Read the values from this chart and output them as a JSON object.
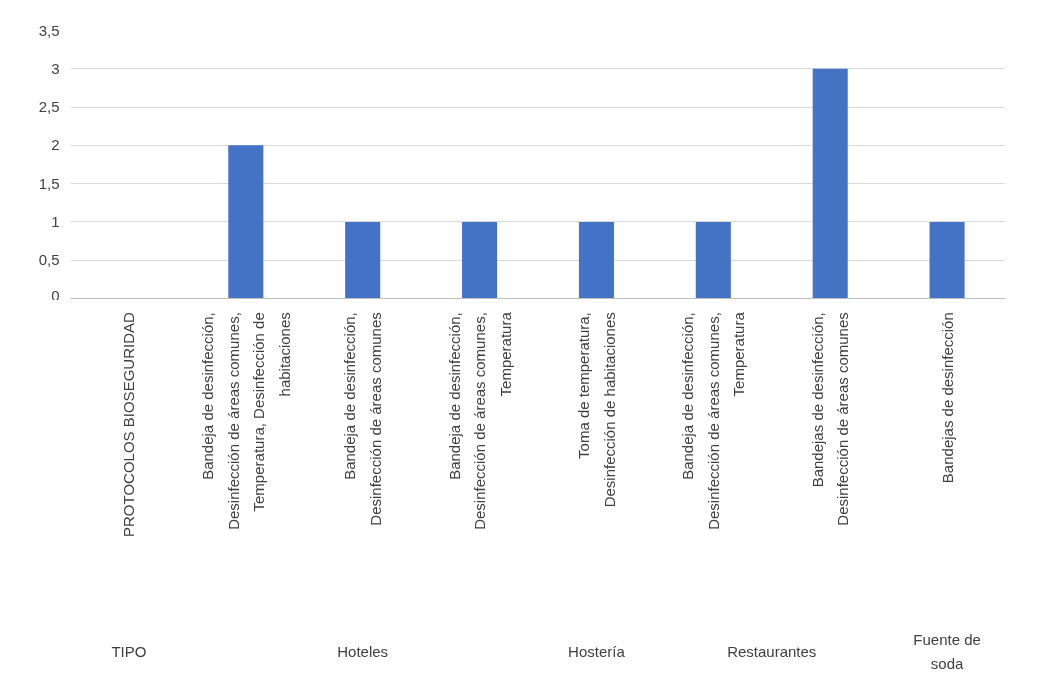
{
  "chart_data": {
    "type": "bar",
    "categories": [
      "PROTOCOLOS BIOSEGURIDAD",
      "Bandeja de desinfección, Desinfección de áreas comunes, Temperatura, Desinfección de habitaciones",
      "Bandeja de desinfección, Desinfección de áreas comunes",
      "Bandeja de desinfección, Desinfección de áreas comunes, Temperatura",
      "Toma de temperatura, Desinfección de habitaciones",
      "Bandeja de desinfección, Desinfección de áreas comunes, Temperatura",
      "Bandejas de desinfección, Desinfección de áreas comunes",
      "Bandejas de desinfección"
    ],
    "values": [
      null,
      2,
      1,
      1,
      1,
      1,
      3,
      1
    ],
    "color": "#4472c4",
    "ylim": [
      0,
      3.5
    ],
    "yticks": [
      0,
      {
        "value": 0.5,
        "label": "0,5"
      },
      1,
      {
        "value": 1.5,
        "label": "1,5"
      },
      2,
      {
        "value": 2.5,
        "label": "2,5"
      },
      3,
      {
        "value": 3.5,
        "label": "3,5"
      }
    ],
    "grid": "y",
    "annotations": [
      "TIPO",
      "Hoteles",
      "Hostería",
      "Restaurantes",
      "Fuente de soda"
    ]
  }
}
